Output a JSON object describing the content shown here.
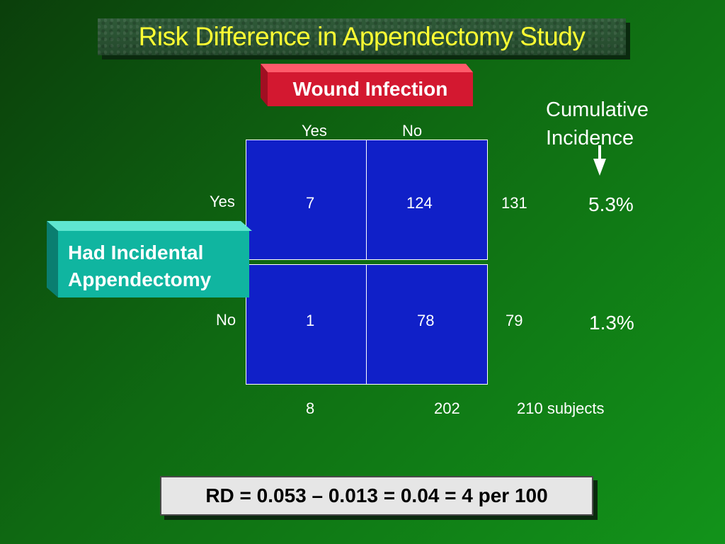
{
  "title": "Risk Difference in Appendectomy Study",
  "outcome_label": "Wound Infection",
  "exposure_label": [
    "Had Incidental",
    "Appendectomy"
  ],
  "columns": [
    "Yes",
    "No"
  ],
  "rows": [
    "Yes",
    "No"
  ],
  "cells": [
    [
      "7",
      "124"
    ],
    [
      "1",
      "78"
    ]
  ],
  "row_totals": [
    "131",
    "79"
  ],
  "col_totals": [
    "8",
    "202"
  ],
  "grand_total": "210 subjects",
  "cumulative_incidence_header": [
    "Cumulative",
    "Incidence"
  ],
  "cumulative_incidence": [
    "5.3%",
    "1.3%"
  ],
  "formula": "RD = 0.053 – 0.013 = 0.04 = 4 per 100",
  "colors": {
    "title_text": "#ffff33",
    "outcome_box": "#d31830",
    "exposure_box": "#10b5a0",
    "cell_fill": "#1020c8",
    "formula_box": "#e6e6e6"
  },
  "icons": {
    "incidence_arrow": "arrow-down-icon"
  }
}
